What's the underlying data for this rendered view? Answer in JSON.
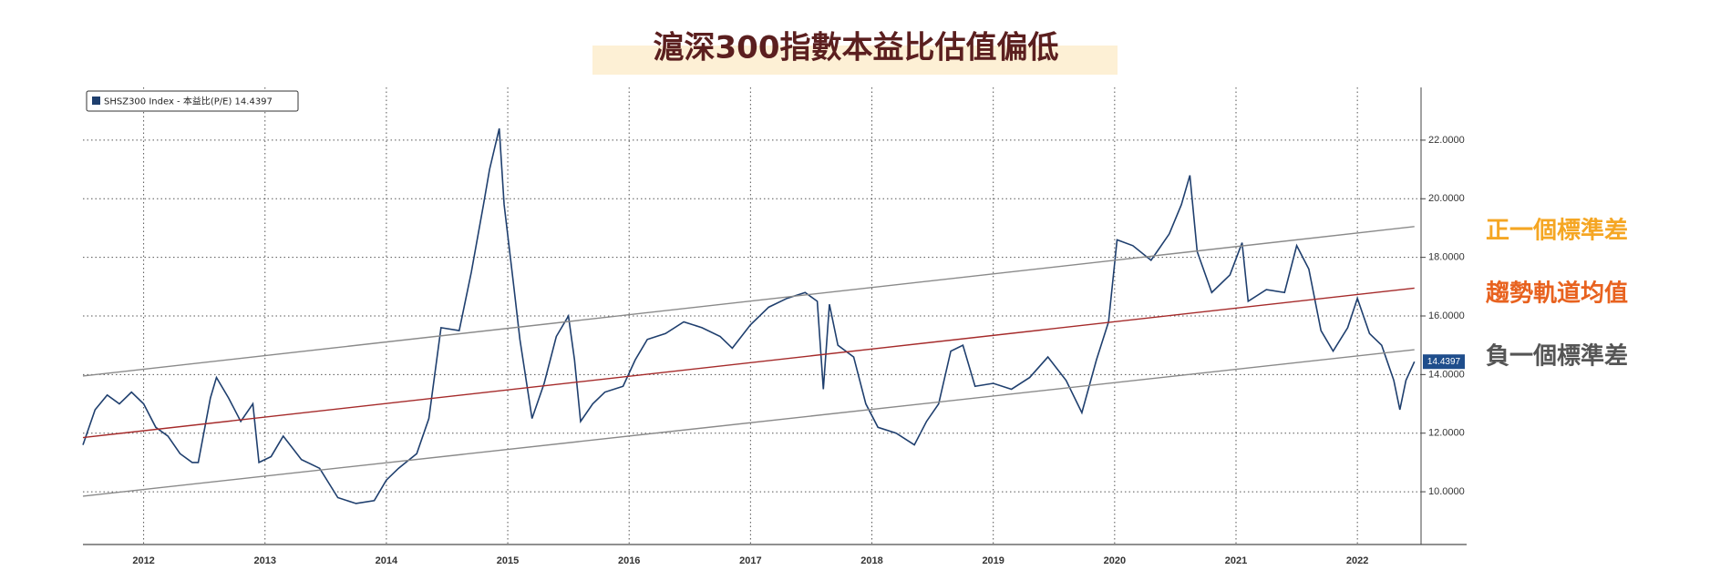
{
  "chart_data": {
    "type": "line",
    "title": "滬深300指數本益比估值偏低",
    "xlim": [
      2012,
      2023.4
    ],
    "ylim": [
      8.2,
      23.8
    ],
    "xticks": [
      {
        "value": 2012.5,
        "label": "2012"
      },
      {
        "value": 2013.5,
        "label": "2013"
      },
      {
        "value": 2014.5,
        "label": "2014"
      },
      {
        "value": 2015.5,
        "label": "2015"
      },
      {
        "value": 2016.5,
        "label": "2016"
      },
      {
        "value": 2017.5,
        "label": "2017"
      },
      {
        "value": 2018.5,
        "label": "2018"
      },
      {
        "value": 2019.5,
        "label": "2019"
      },
      {
        "value": 2020.5,
        "label": "2020"
      },
      {
        "value": 2021.5,
        "label": "2021"
      },
      {
        "value": 2022.5,
        "label": "2022"
      }
    ],
    "yticks": [
      {
        "value": 10,
        "label": "10.0000"
      },
      {
        "value": 12,
        "label": "12.0000"
      },
      {
        "value": 14,
        "label": "14.0000"
      },
      {
        "value": 16,
        "label": "16.0000"
      },
      {
        "value": 18,
        "label": "18.0000"
      },
      {
        "value": 20,
        "label": "20.0000"
      },
      {
        "value": 22,
        "label": "22.0000"
      }
    ],
    "grid": true,
    "series": [
      {
        "name": "SHSZ300 Index - 本益比(P/E)",
        "color": "#1f3f6e",
        "x": [
          2012.0,
          2012.1,
          2012.2,
          2012.3,
          2012.4,
          2012.5,
          2012.6,
          2012.7,
          2012.8,
          2012.9,
          2012.95,
          2013.05,
          2013.1,
          2013.2,
          2013.3,
          2013.4,
          2013.45,
          2013.55,
          2013.65,
          2013.8,
          2013.95,
          2014.1,
          2014.25,
          2014.4,
          2014.5,
          2014.6,
          2014.75,
          2014.85,
          2014.95,
          2015.1,
          2015.2,
          2015.3,
          2015.35,
          2015.43,
          2015.47,
          2015.55,
          2015.6,
          2015.7,
          2015.8,
          2015.9,
          2016.0,
          2016.05,
          2016.1,
          2016.2,
          2016.3,
          2016.45,
          2016.55,
          2016.65,
          2016.8,
          2016.95,
          2017.1,
          2017.25,
          2017.35,
          2017.5,
          2017.65,
          2017.8,
          2017.95,
          2018.05,
          2018.1,
          2018.15,
          2018.22,
          2018.35,
          2018.45,
          2018.55,
          2018.7,
          2018.85,
          2018.95,
          2019.05,
          2019.15,
          2019.25,
          2019.35,
          2019.5,
          2019.65,
          2019.8,
          2019.95,
          2020.1,
          2020.23,
          2020.35,
          2020.45,
          2020.52,
          2020.65,
          2020.8,
          2020.95,
          2021.05,
          2021.12,
          2021.18,
          2021.3,
          2021.45,
          2021.55,
          2021.6,
          2021.75,
          2021.9,
          2022.0,
          2022.1,
          2022.2,
          2022.3,
          2022.42,
          2022.5,
          2022.6,
          2022.7,
          2022.8,
          2022.85,
          2022.9,
          2022.97
        ],
        "values": [
          11.6,
          12.8,
          13.3,
          13.0,
          13.4,
          13.0,
          12.2,
          11.9,
          11.3,
          11.0,
          11.0,
          13.2,
          13.9,
          13.2,
          12.4,
          13.0,
          11.0,
          11.2,
          11.9,
          11.1,
          10.8,
          9.8,
          9.6,
          9.7,
          10.4,
          10.8,
          11.3,
          12.5,
          15.6,
          15.5,
          17.5,
          19.8,
          21.0,
          22.4,
          19.8,
          17.0,
          15.2,
          12.5,
          13.7,
          15.3,
          16.0,
          14.5,
          12.4,
          13.0,
          13.4,
          13.6,
          14.5,
          15.2,
          15.4,
          15.8,
          15.6,
          15.3,
          14.9,
          15.7,
          16.3,
          16.6,
          16.8,
          16.5,
          13.5,
          16.4,
          15.0,
          14.6,
          13.0,
          12.2,
          12.0,
          11.6,
          12.4,
          13.0,
          14.8,
          15.0,
          13.6,
          13.7,
          13.5,
          13.9,
          14.6,
          13.8,
          12.7,
          14.5,
          15.8,
          18.6,
          18.4,
          17.9,
          18.8,
          19.8,
          20.8,
          18.2,
          16.8,
          17.4,
          18.5,
          16.5,
          16.9,
          16.8,
          18.4,
          17.6,
          15.5,
          14.8,
          15.6,
          16.6,
          15.4,
          15.0,
          13.8,
          12.8,
          13.8,
          14.4397
        ]
      },
      {
        "name": "正一個標準差",
        "color": "#8a8a8a",
        "label_color": "#f5a623",
        "x": [
          2012.0,
          2022.97
        ],
        "values": [
          13.95,
          19.05
        ]
      },
      {
        "name": "趨勢軌道均值",
        "color": "#a52a2a",
        "label_color": "#e8621f",
        "x": [
          2012.0,
          2022.97
        ],
        "values": [
          11.85,
          16.95
        ]
      },
      {
        "name": "負一個標準差",
        "color": "#8a8a8a",
        "label_color": "#555555",
        "x": [
          2012.0,
          2022.97
        ],
        "values": [
          9.85,
          14.85
        ]
      }
    ]
  }
}
